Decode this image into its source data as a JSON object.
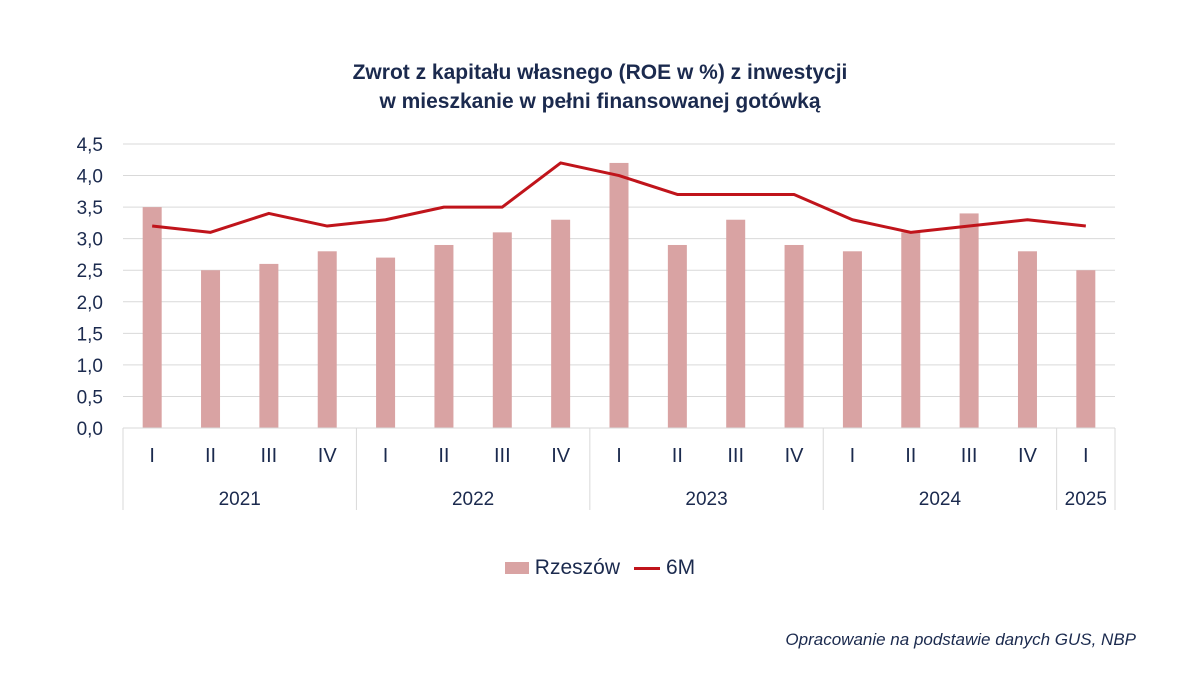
{
  "chart_data": {
    "type": "bar",
    "title_line1": "Zwrot z kapitału własnego (ROE w %) z inwestycji",
    "title_line2": "w mieszkanie w pełni finansowanej gotówką",
    "categories": [
      "I",
      "II",
      "III",
      "IV",
      "I",
      "II",
      "III",
      "IV",
      "I",
      "II",
      "III",
      "IV",
      "I",
      "II",
      "III",
      "IV",
      "I"
    ],
    "years": [
      {
        "label": "2021",
        "count": 4
      },
      {
        "label": "2022",
        "count": 4
      },
      {
        "label": "2023",
        "count": 4
      },
      {
        "label": "2024",
        "count": 4
      },
      {
        "label": "2025",
        "count": 1
      }
    ],
    "series": [
      {
        "name": "Rzeszów",
        "type": "bar",
        "color": "#d9a3a3",
        "values": [
          3.5,
          2.5,
          2.6,
          2.8,
          2.7,
          2.9,
          3.1,
          3.3,
          4.2,
          2.9,
          3.3,
          2.9,
          2.8,
          3.1,
          3.4,
          2.8,
          2.5
        ]
      },
      {
        "name": "6M",
        "type": "line",
        "color": "#c0141b",
        "values": [
          3.2,
          3.1,
          3.4,
          3.2,
          3.3,
          3.5,
          3.5,
          4.2,
          4.0,
          3.7,
          3.7,
          3.7,
          3.3,
          3.1,
          3.2,
          3.3,
          3.2
        ]
      }
    ],
    "y_ticks": [
      "0,0",
      "0,5",
      "1,0",
      "1,5",
      "2,0",
      "2,5",
      "3,0",
      "3,5",
      "4,0",
      "4,5"
    ],
    "ylim": [
      0,
      4.5
    ],
    "grid": true,
    "legend_position": "bottom-center",
    "xlabel": "",
    "ylabel": ""
  },
  "source_note": "Opracowanie na podstawie danych GUS, NBP"
}
